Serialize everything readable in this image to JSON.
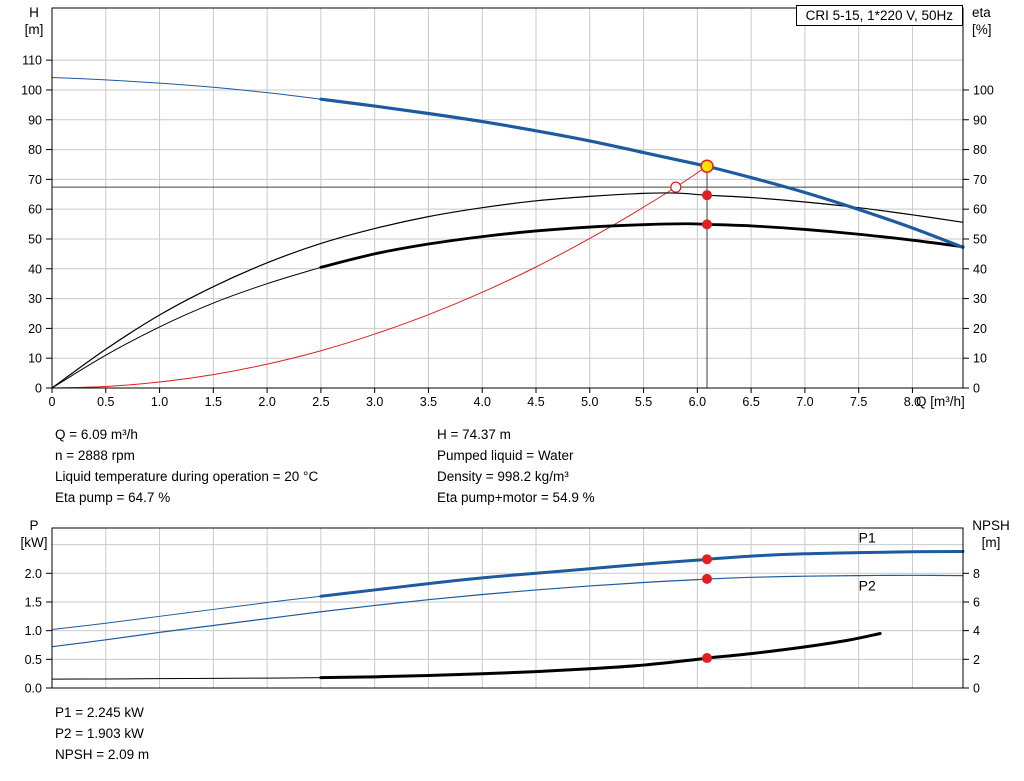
{
  "palette": {
    "blue": "#1d5aa0",
    "red": "#e02020",
    "black": "#000000",
    "white": "#ffffff",
    "yellow": "#ffe000",
    "grid": "#c9c9c9",
    "ref": "#404040"
  },
  "axis_labels": {
    "h": "H",
    "h_unit": "[m]",
    "eta": "eta",
    "eta_unit": "[%]",
    "q": "Q [m³/h]",
    "p": "P",
    "p_unit": "[kW]",
    "npsh": "NPSH",
    "npsh_unit": "[m]"
  },
  "info_top": {
    "left": [
      "Q = 6.09 m³/h",
      "n = 2888 rpm",
      "Liquid temperature during operation = 20 °C",
      "Eta pump = 64.7 %"
    ],
    "right": [
      "H = 74.37 m",
      "Pumped liquid = Water",
      "Density = 998.2 kg/m³",
      "Eta pump+motor = 54.9 %"
    ]
  },
  "info_bottom": [
    "P1 = 2.245 kW",
    "P2 = 1.903 kW",
    "NPSH = 2.09 m"
  ],
  "chart_data": [
    {
      "id": "qh-eta",
      "type": "line",
      "title": "CRI 5-15, 1*220 V, 50Hz",
      "x": {
        "min": 0,
        "max": 8.47,
        "grid": [
          0.5,
          1,
          1.5,
          2,
          2.5,
          3,
          3.5,
          4,
          4.5,
          5,
          5.5,
          6,
          6.5,
          7,
          7.5,
          8
        ],
        "ticks": [
          "0",
          "0.5",
          "1.0",
          "1.5",
          "2.0",
          "2.5",
          "3.0",
          "3.5",
          "4.0",
          "4.5",
          "5.0",
          "5.5",
          "6.0",
          "6.5",
          "7.0",
          "7.5",
          "8.0"
        ],
        "label": "Q [m³/h]"
      },
      "y_left": {
        "min": 0,
        "max": 127.5,
        "grid": [
          10,
          20,
          30,
          40,
          50,
          60,
          70,
          80,
          90,
          100,
          110
        ],
        "ticks": [
          "0",
          "10",
          "20",
          "30",
          "40",
          "50",
          "60",
          "70",
          "80",
          "90",
          "100",
          "110"
        ],
        "label": "H [m]"
      },
      "y_right": {
        "min": 0,
        "max": 127.5,
        "ticks": [
          "0",
          "10",
          "20",
          "30",
          "40",
          "50",
          "60",
          "70",
          "80",
          "90",
          "100"
        ],
        "label": "eta [%]"
      },
      "ref_h": 67.4,
      "ref_v": {
        "x": 6.09,
        "y_top": 74.4
      },
      "series": [
        {
          "name": "system-curve",
          "color": "red",
          "width": 1,
          "points": [
            [
              0,
              0
            ],
            [
              0.5,
              0.5
            ],
            [
              1,
              2
            ],
            [
              1.5,
              4.5
            ],
            [
              2,
              8
            ],
            [
              2.5,
              12.5
            ],
            [
              3,
              18.1
            ],
            [
              3.5,
              24.6
            ],
            [
              4,
              32.1
            ],
            [
              4.5,
              40.6
            ],
            [
              5,
              50.2
            ],
            [
              5.4,
              58.5
            ],
            [
              5.8,
              67.4
            ],
            [
              6.09,
              74.4
            ]
          ]
        },
        {
          "name": "eta-pump",
          "color": "black",
          "width": 1.2,
          "points": [
            [
              0,
              0
            ],
            [
              0.5,
              13
            ],
            [
              1,
              24.5
            ],
            [
              1.5,
              34
            ],
            [
              2,
              42
            ],
            [
              2.5,
              48.5
            ],
            [
              3,
              53.5
            ],
            [
              3.5,
              57.5
            ],
            [
              4,
              60.5
            ],
            [
              4.5,
              62.8
            ],
            [
              5,
              64.3
            ],
            [
              5.5,
              65.3
            ],
            [
              5.8,
              65.4
            ],
            [
              6.09,
              64.7
            ],
            [
              6.5,
              63.9
            ],
            [
              7,
              62.4
            ],
            [
              7.5,
              60.5
            ],
            [
              8,
              58.1
            ],
            [
              8.47,
              55.6
            ]
          ]
        },
        {
          "name": "eta-pump-motor-lead",
          "color": "black",
          "width": 1,
          "points": [
            [
              0,
              0
            ],
            [
              0.5,
              11
            ],
            [
              1,
              20.5
            ],
            [
              1.5,
              28.5
            ],
            [
              2,
              35
            ],
            [
              2.5,
              40.5
            ]
          ]
        },
        {
          "name": "eta-pump-motor",
          "color": "black",
          "width": 2.8,
          "points": [
            [
              2.5,
              40.5
            ],
            [
              3,
              45
            ],
            [
              3.5,
              48.3
            ],
            [
              4,
              50.8
            ],
            [
              4.5,
              52.7
            ],
            [
              5,
              54
            ],
            [
              5.5,
              54.8
            ],
            [
              5.9,
              55.1
            ],
            [
              6.09,
              54.9
            ],
            [
              6.5,
              54.4
            ],
            [
              7,
              53.2
            ],
            [
              7.5,
              51.6
            ],
            [
              8,
              49.6
            ],
            [
              8.47,
              47.4
            ]
          ]
        },
        {
          "name": "qh-lead",
          "color": "blue",
          "width": 1,
          "points": [
            [
              0,
              104.2
            ],
            [
              0.5,
              103.4
            ],
            [
              1,
              102.3
            ],
            [
              1.5,
              100.9
            ],
            [
              2,
              99.1
            ],
            [
              2.5,
              96.9
            ]
          ]
        },
        {
          "name": "qh",
          "color": "blue",
          "width": 3.2,
          "points": [
            [
              2.5,
              96.9
            ],
            [
              3,
              94.6
            ],
            [
              3.5,
              92.1
            ],
            [
              4,
              89.4
            ],
            [
              4.5,
              86.3
            ],
            [
              5,
              82.9
            ],
            [
              5.5,
              79
            ],
            [
              6,
              75.1
            ],
            [
              6.09,
              74.4
            ],
            [
              6.5,
              70.6
            ],
            [
              7,
              65.6
            ],
            [
              7.5,
              59.9
            ],
            [
              8,
              53.7
            ],
            [
              8.47,
              47.2
            ]
          ]
        }
      ],
      "markers": [
        {
          "name": "requested-duty",
          "x": 5.8,
          "y": 67.4,
          "r": 5,
          "fill": "white",
          "stroke": "red",
          "sw": 1.3
        },
        {
          "name": "duty-point",
          "x": 6.09,
          "y": 74.4,
          "r": 6,
          "fill": "yellow",
          "stroke": "red",
          "sw": 1.5
        },
        {
          "name": "eta-pump-value",
          "x": 6.09,
          "y": 64.7,
          "r": 5,
          "fill": "red"
        },
        {
          "name": "eta-pump-motor-value",
          "x": 6.09,
          "y": 54.9,
          "r": 5,
          "fill": "red"
        }
      ],
      "labels": []
    },
    {
      "id": "power-npsh",
      "type": "line",
      "title": "",
      "x": {
        "min": 0,
        "max": 8.47,
        "grid": [
          0.5,
          1,
          1.5,
          2,
          2.5,
          3,
          3.5,
          4,
          4.5,
          5,
          5.5,
          6,
          6.5,
          7,
          7.5,
          8
        ],
        "ticks": [],
        "label": ""
      },
      "y_left": {
        "min": 0,
        "max": 2.79,
        "grid": [
          0.5,
          1,
          1.5,
          2,
          2.5
        ],
        "ticks": [
          "0.0",
          "0.5",
          "1.0",
          "1.5",
          "2.0"
        ],
        "label": "P [kW]"
      },
      "y_right": {
        "min": 0,
        "max": 11.16,
        "ticks": [
          "0",
          "2",
          "4",
          "6",
          "8"
        ],
        "label": "NPSH [m]"
      },
      "ref_h": null,
      "ref_v": null,
      "series": [
        {
          "name": "p1-lead",
          "color": "blue",
          "width": 1,
          "points": [
            [
              0,
              1.02
            ],
            [
              0.5,
              1.13
            ],
            [
              1,
              1.25
            ],
            [
              1.5,
              1.37
            ],
            [
              2,
              1.49
            ],
            [
              2.5,
              1.6
            ]
          ]
        },
        {
          "name": "p1",
          "color": "blue",
          "width": 3,
          "points": [
            [
              2.5,
              1.6
            ],
            [
              3,
              1.71
            ],
            [
              3.5,
              1.82
            ],
            [
              4,
              1.92
            ],
            [
              4.5,
              2.0
            ],
            [
              5,
              2.08
            ],
            [
              5.5,
              2.16
            ],
            [
              6,
              2.23
            ],
            [
              6.09,
              2.245
            ],
            [
              6.5,
              2.3
            ],
            [
              7,
              2.34
            ],
            [
              7.5,
              2.36
            ],
            [
              8,
              2.375
            ],
            [
              8.47,
              2.38
            ]
          ]
        },
        {
          "name": "p2",
          "color": "blue",
          "width": 1.2,
          "points": [
            [
              0,
              0.72
            ],
            [
              0.5,
              0.84
            ],
            [
              1,
              0.97
            ],
            [
              1.5,
              1.09
            ],
            [
              2,
              1.21
            ],
            [
              2.5,
              1.33
            ],
            [
              3,
              1.44
            ],
            [
              3.5,
              1.54
            ],
            [
              4,
              1.63
            ],
            [
              4.5,
              1.71
            ],
            [
              5,
              1.78
            ],
            [
              5.5,
              1.84
            ],
            [
              6,
              1.89
            ],
            [
              6.09,
              1.9
            ],
            [
              6.5,
              1.93
            ],
            [
              7,
              1.95
            ],
            [
              7.5,
              1.96
            ],
            [
              8,
              1.965
            ],
            [
              8.47,
              1.96
            ]
          ]
        },
        {
          "name": "npsh-lead",
          "axis": "right",
          "color": "black",
          "width": 1,
          "points": [
            [
              0,
              0.62
            ],
            [
              0.5,
              0.63
            ],
            [
              1,
              0.65
            ],
            [
              1.5,
              0.67
            ],
            [
              2,
              0.69
            ],
            [
              2.5,
              0.72
            ]
          ]
        },
        {
          "name": "npsh",
          "axis": "right",
          "color": "black",
          "width": 3,
          "points": [
            [
              2.5,
              0.72
            ],
            [
              3,
              0.78
            ],
            [
              3.5,
              0.87
            ],
            [
              4,
              0.99
            ],
            [
              4.5,
              1.14
            ],
            [
              5,
              1.34
            ],
            [
              5.5,
              1.6
            ],
            [
              6,
              2.0
            ],
            [
              6.09,
              2.09
            ],
            [
              6.5,
              2.4
            ],
            [
              7,
              2.87
            ],
            [
              7.4,
              3.33
            ],
            [
              7.7,
              3.8
            ]
          ]
        }
      ],
      "markers": [
        {
          "name": "p1-value",
          "x": 6.09,
          "y": 2.245,
          "r": 5,
          "fill": "red"
        },
        {
          "name": "p2-value",
          "x": 6.09,
          "y": 1.903,
          "r": 5,
          "fill": "red"
        },
        {
          "name": "npsh-value",
          "x": 6.09,
          "y": 2.09,
          "axis": "right",
          "r": 5,
          "fill": "red"
        }
      ],
      "labels": [
        {
          "text": "P1",
          "x": 7.5,
          "y": 2.54,
          "color": "blue"
        },
        {
          "text": "P2",
          "x": 7.5,
          "y": 1.7,
          "color": "blue"
        }
      ]
    }
  ]
}
